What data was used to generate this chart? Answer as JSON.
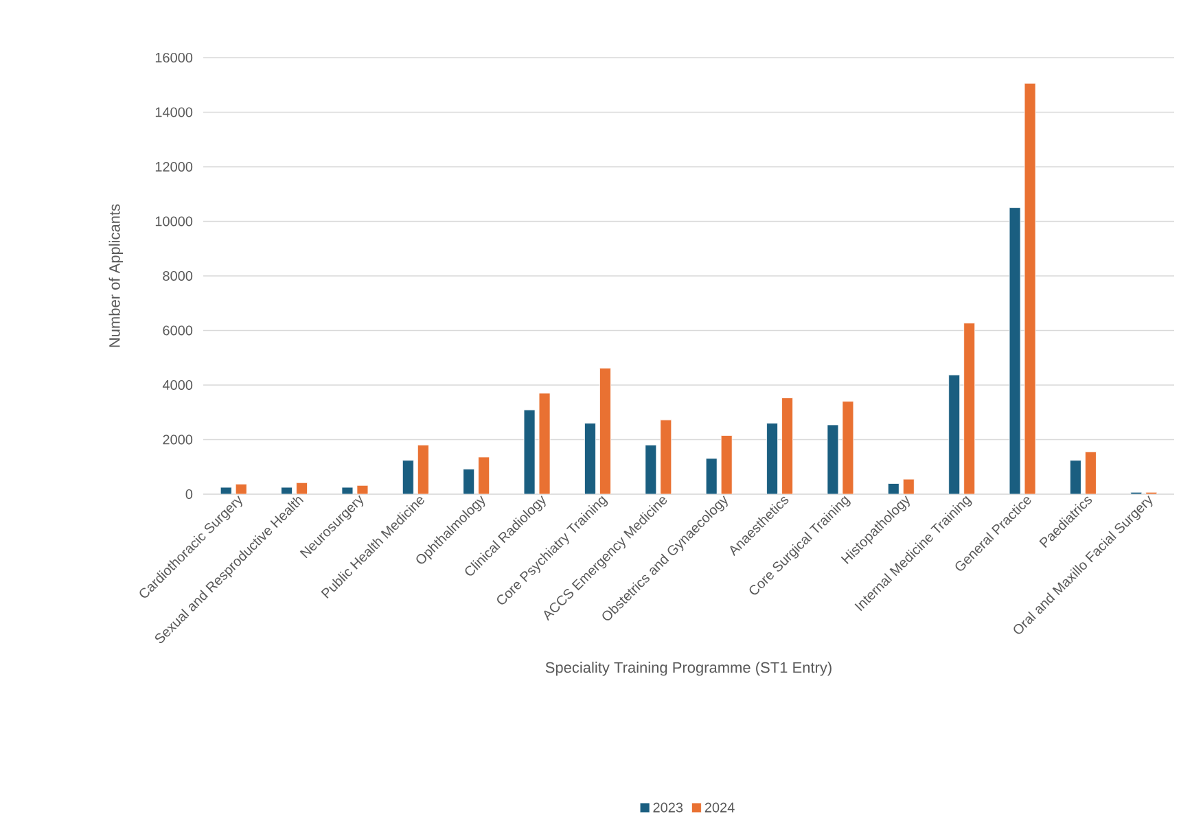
{
  "chart_data": {
    "type": "bar",
    "xlabel": "Speciality Training Programme (ST1 Entry)",
    "ylabel": "Number of Applicants",
    "categories": [
      "Cardiothoracic Surgery",
      "Sexual and Resproductive Health",
      "Neurosurgery",
      "Public Health Medicine",
      "Ophthalmology",
      "Clinical Radiology",
      "Core Psychiatry Training",
      "ACCS Emergency Medicine",
      "Obstetrics and Gynaecology",
      "Anaesthetics",
      "Core Surgical Training",
      "Histopathology",
      "Internal Medicine Training",
      "General Practice",
      "Paediatrics",
      "Oral and Maxillo Facial Surgery"
    ],
    "series": [
      {
        "name": "2023",
        "color": "#1a5e80",
        "values": [
          250,
          250,
          250,
          1240,
          920,
          3090,
          2600,
          1800,
          1310,
          2600,
          2540,
          390,
          4370,
          10500,
          1240,
          70
        ]
      },
      {
        "name": "2024",
        "color": "#e97132",
        "values": [
          370,
          420,
          320,
          1800,
          1360,
          3700,
          4620,
          2720,
          2150,
          3530,
          3400,
          550,
          6270,
          15060,
          1550,
          70
        ]
      }
    ],
    "ylim": [
      0,
      16000
    ],
    "yticks": [
      0,
      2000,
      4000,
      6000,
      8000,
      10000,
      12000,
      14000,
      16000
    ],
    "grid": "y",
    "legend": "bottom"
  }
}
